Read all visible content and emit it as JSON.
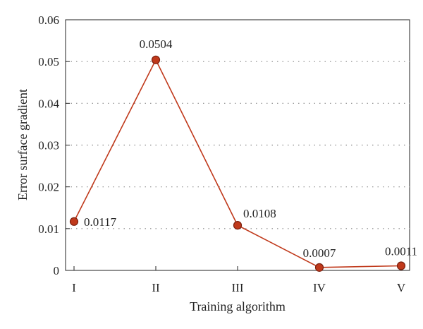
{
  "chart_data": {
    "type": "line",
    "title": "",
    "xlabel": "Training algorithm",
    "ylabel": "Error surface gradient",
    "categories": [
      "I",
      "II",
      "III",
      "IV",
      "V"
    ],
    "series": [
      {
        "values": [
          0.0117,
          0.0504,
          0.0108,
          0.0007,
          0.0011
        ]
      }
    ],
    "data_labels": [
      "0.0117",
      "0.0504",
      "0.0108",
      "0.0007",
      "0.0011"
    ],
    "ylim": [
      0,
      0.06
    ],
    "yticks": [
      "0",
      "0.01",
      "0.02",
      "0.03",
      "0.04",
      "0.05",
      "0.06"
    ],
    "grid": "horizontal-dotted",
    "legend": "none",
    "colors": {
      "line": "#c0391b",
      "marker_fill": "#c0391b",
      "marker_stroke": "#7a1f0e",
      "grid": "#888888",
      "axis": "#222222"
    }
  }
}
